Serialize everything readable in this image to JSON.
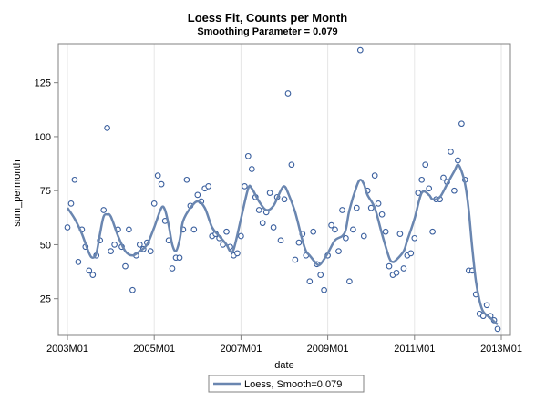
{
  "chart_data": {
    "type": "scatter",
    "title": "Loess Fit, Counts per Month",
    "subtitle": "Smoothing Parameter = 0.079",
    "xlabel": "date",
    "ylabel": "sum_permonth",
    "x_ticks": [
      "2003M01",
      "2005M01",
      "2007M01",
      "2009M01",
      "2011M01",
      "2013M01"
    ],
    "y_ticks": [
      25,
      50,
      75,
      100,
      125
    ],
    "xlim": [
      "2003M01",
      "2013M01"
    ],
    "ylim": [
      8,
      143
    ],
    "grid": "vertical",
    "legend_position": "bottom",
    "legend_label": "Loess, Smooth=0.079",
    "colors": {
      "points": "#3a5f9e",
      "fit": "#6a86b0",
      "grid": "#e6e6e6",
      "frame": "#808080"
    },
    "series": [
      {
        "type": "scatter",
        "points": [
          [
            "2003M01",
            58
          ],
          [
            "2003M02",
            69
          ],
          [
            "2003M03",
            80
          ],
          [
            "2003M04",
            42
          ],
          [
            "2003M05",
            57
          ],
          [
            "2003M06",
            49
          ],
          [
            "2003M07",
            38
          ],
          [
            "2003M08",
            36
          ],
          [
            "2003M09",
            45
          ],
          [
            "2003M10",
            52
          ],
          [
            "2003M11",
            66
          ],
          [
            "2003M12",
            104
          ],
          [
            "2004M01",
            47
          ],
          [
            "2004M02",
            50
          ],
          [
            "2004M03",
            57
          ],
          [
            "2004M04",
            49
          ],
          [
            "2004M05",
            40
          ],
          [
            "2004M06",
            57
          ],
          [
            "2004M07",
            29
          ],
          [
            "2004M08",
            45
          ],
          [
            "2004M09",
            50
          ],
          [
            "2004M10",
            48
          ],
          [
            "2004M11",
            51
          ],
          [
            "2004M12",
            47
          ],
          [
            "2005M01",
            69
          ],
          [
            "2005M02",
            82
          ],
          [
            "2005M03",
            78
          ],
          [
            "2005M04",
            61
          ],
          [
            "2005M05",
            52
          ],
          [
            "2005M06",
            39
          ],
          [
            "2005M07",
            44
          ],
          [
            "2005M08",
            44
          ],
          [
            "2005M09",
            57
          ],
          [
            "2005M10",
            80
          ],
          [
            "2005M11",
            68
          ],
          [
            "2005M12",
            57
          ],
          [
            "2006M01",
            73
          ],
          [
            "2006M02",
            70
          ],
          [
            "2006M03",
            76
          ],
          [
            "2006M04",
            77
          ],
          [
            "2006M05",
            54
          ],
          [
            "2006M06",
            55
          ],
          [
            "2006M07",
            53
          ],
          [
            "2006M08",
            50
          ],
          [
            "2006M09",
            56
          ],
          [
            "2006M10",
            49
          ],
          [
            "2006M11",
            45
          ],
          [
            "2006M12",
            46
          ],
          [
            "2007M01",
            54
          ],
          [
            "2007M02",
            77
          ],
          [
            "2007M03",
            91
          ],
          [
            "2007M04",
            85
          ],
          [
            "2007M05",
            72
          ],
          [
            "2007M06",
            66
          ],
          [
            "2007M07",
            60
          ],
          [
            "2007M08",
            65
          ],
          [
            "2007M09",
            74
          ],
          [
            "2007M10",
            58
          ],
          [
            "2007M11",
            72
          ],
          [
            "2007M12",
            52
          ],
          [
            "2008M01",
            71
          ],
          [
            "2008M02",
            120
          ],
          [
            "2008M03",
            87
          ],
          [
            "2008M04",
            43
          ],
          [
            "2008M05",
            51
          ],
          [
            "2008M06",
            55
          ],
          [
            "2008M07",
            45
          ],
          [
            "2008M08",
            33
          ],
          [
            "2008M09",
            56
          ],
          [
            "2008M10",
            41
          ],
          [
            "2008M11",
            36
          ],
          [
            "2008M12",
            29
          ],
          [
            "2009M01",
            45
          ],
          [
            "2009M02",
            59
          ],
          [
            "2009M03",
            57
          ],
          [
            "2009M04",
            47
          ],
          [
            "2009M05",
            66
          ],
          [
            "2009M06",
            53
          ],
          [
            "2009M07",
            33
          ],
          [
            "2009M08",
            57
          ],
          [
            "2009M09",
            67
          ],
          [
            "2009M10",
            140
          ],
          [
            "2009M11",
            54
          ],
          [
            "2009M12",
            75
          ],
          [
            "2010M01",
            67
          ],
          [
            "2010M02",
            82
          ],
          [
            "2010M03",
            69
          ],
          [
            "2010M04",
            64
          ],
          [
            "2010M05",
            56
          ],
          [
            "2010M06",
            40
          ],
          [
            "2010M07",
            36
          ],
          [
            "2010M08",
            37
          ],
          [
            "2010M09",
            55
          ],
          [
            "2010M10",
            39
          ],
          [
            "2010M11",
            45
          ],
          [
            "2010M12",
            46
          ],
          [
            "2011M01",
            53
          ],
          [
            "2011M02",
            74
          ],
          [
            "2011M03",
            80
          ],
          [
            "2011M04",
            87
          ],
          [
            "2011M05",
            76
          ],
          [
            "2011M06",
            56
          ],
          [
            "2011M07",
            71
          ],
          [
            "2011M08",
            71
          ],
          [
            "2011M09",
            81
          ],
          [
            "2011M10",
            79
          ],
          [
            "2011M11",
            93
          ],
          [
            "2011M12",
            75
          ],
          [
            "2012M01",
            89
          ],
          [
            "2012M02",
            106
          ],
          [
            "2012M03",
            80
          ],
          [
            "2012M04",
            38
          ],
          [
            "2012M05",
            38
          ],
          [
            "2012M06",
            27
          ],
          [
            "2012M07",
            18
          ],
          [
            "2012M08",
            17
          ],
          [
            "2012M09",
            22
          ],
          [
            "2012M10",
            17
          ],
          [
            "2012M11",
            15
          ],
          [
            "2012M12",
            11
          ]
        ]
      },
      {
        "type": "line",
        "name": "Loess, Smooth=0.079",
        "points": [
          [
            "2003M01",
            67
          ],
          [
            "2003M03",
            62
          ],
          [
            "2003M05",
            55
          ],
          [
            "2003M07",
            46
          ],
          [
            "2003M08",
            44
          ],
          [
            "2003M09",
            46
          ],
          [
            "2003M10",
            55
          ],
          [
            "2003M11",
            63
          ],
          [
            "2003M12",
            64
          ],
          [
            "2004M01",
            63
          ],
          [
            "2004M03",
            54
          ],
          [
            "2004M05",
            47
          ],
          [
            "2004M07",
            45
          ],
          [
            "2004M09",
            47
          ],
          [
            "2004M11",
            50
          ],
          [
            "2005M01",
            58
          ],
          [
            "2005M03",
            67
          ],
          [
            "2005M04",
            66
          ],
          [
            "2005M05",
            59
          ],
          [
            "2005M06",
            50
          ],
          [
            "2005M07",
            47
          ],
          [
            "2005M08",
            52
          ],
          [
            "2005M09",
            61
          ],
          [
            "2005M11",
            67
          ],
          [
            "2006M01",
            70
          ],
          [
            "2006M03",
            67
          ],
          [
            "2006M05",
            58
          ],
          [
            "2006M07",
            54
          ],
          [
            "2006M09",
            50
          ],
          [
            "2006M10",
            47
          ],
          [
            "2006M11",
            48
          ],
          [
            "2007M01",
            62
          ],
          [
            "2007M03",
            76
          ],
          [
            "2007M04",
            76
          ],
          [
            "2007M06",
            70
          ],
          [
            "2007M08",
            66
          ],
          [
            "2007M10",
            68
          ],
          [
            "2007M12",
            75
          ],
          [
            "2008M01",
            77
          ],
          [
            "2008M02",
            74
          ],
          [
            "2008M04",
            65
          ],
          [
            "2008M06",
            52
          ],
          [
            "2008M07",
            47
          ],
          [
            "2008M08",
            45
          ],
          [
            "2008M10",
            41
          ],
          [
            "2008M11",
            41
          ],
          [
            "2009M01",
            46
          ],
          [
            "2009M03",
            52
          ],
          [
            "2009M05",
            54
          ],
          [
            "2009M06",
            57
          ],
          [
            "2009M07",
            66
          ],
          [
            "2009M09",
            77
          ],
          [
            "2009M10",
            80
          ],
          [
            "2009M11",
            78
          ],
          [
            "2009M12",
            73
          ],
          [
            "2010M02",
            67
          ],
          [
            "2010M04",
            55
          ],
          [
            "2010M06",
            44
          ],
          [
            "2010M07",
            42
          ],
          [
            "2010M08",
            43
          ],
          [
            "2010M10",
            47
          ],
          [
            "2010M11",
            52
          ],
          [
            "2011M01",
            62
          ],
          [
            "2011M03",
            74
          ],
          [
            "2011M05",
            73
          ],
          [
            "2011M06",
            71
          ],
          [
            "2011M08",
            72
          ],
          [
            "2011M10",
            78
          ],
          [
            "2011M12",
            84
          ],
          [
            "2012M01",
            87
          ],
          [
            "2012M02",
            84
          ],
          [
            "2012M03",
            78
          ],
          [
            "2012M04",
            66
          ],
          [
            "2012M05",
            48
          ],
          [
            "2012M06",
            33
          ],
          [
            "2012M07",
            24
          ],
          [
            "2012M08",
            19
          ],
          [
            "2012M10",
            16
          ],
          [
            "2012M12",
            13
          ]
        ]
      }
    ]
  }
}
